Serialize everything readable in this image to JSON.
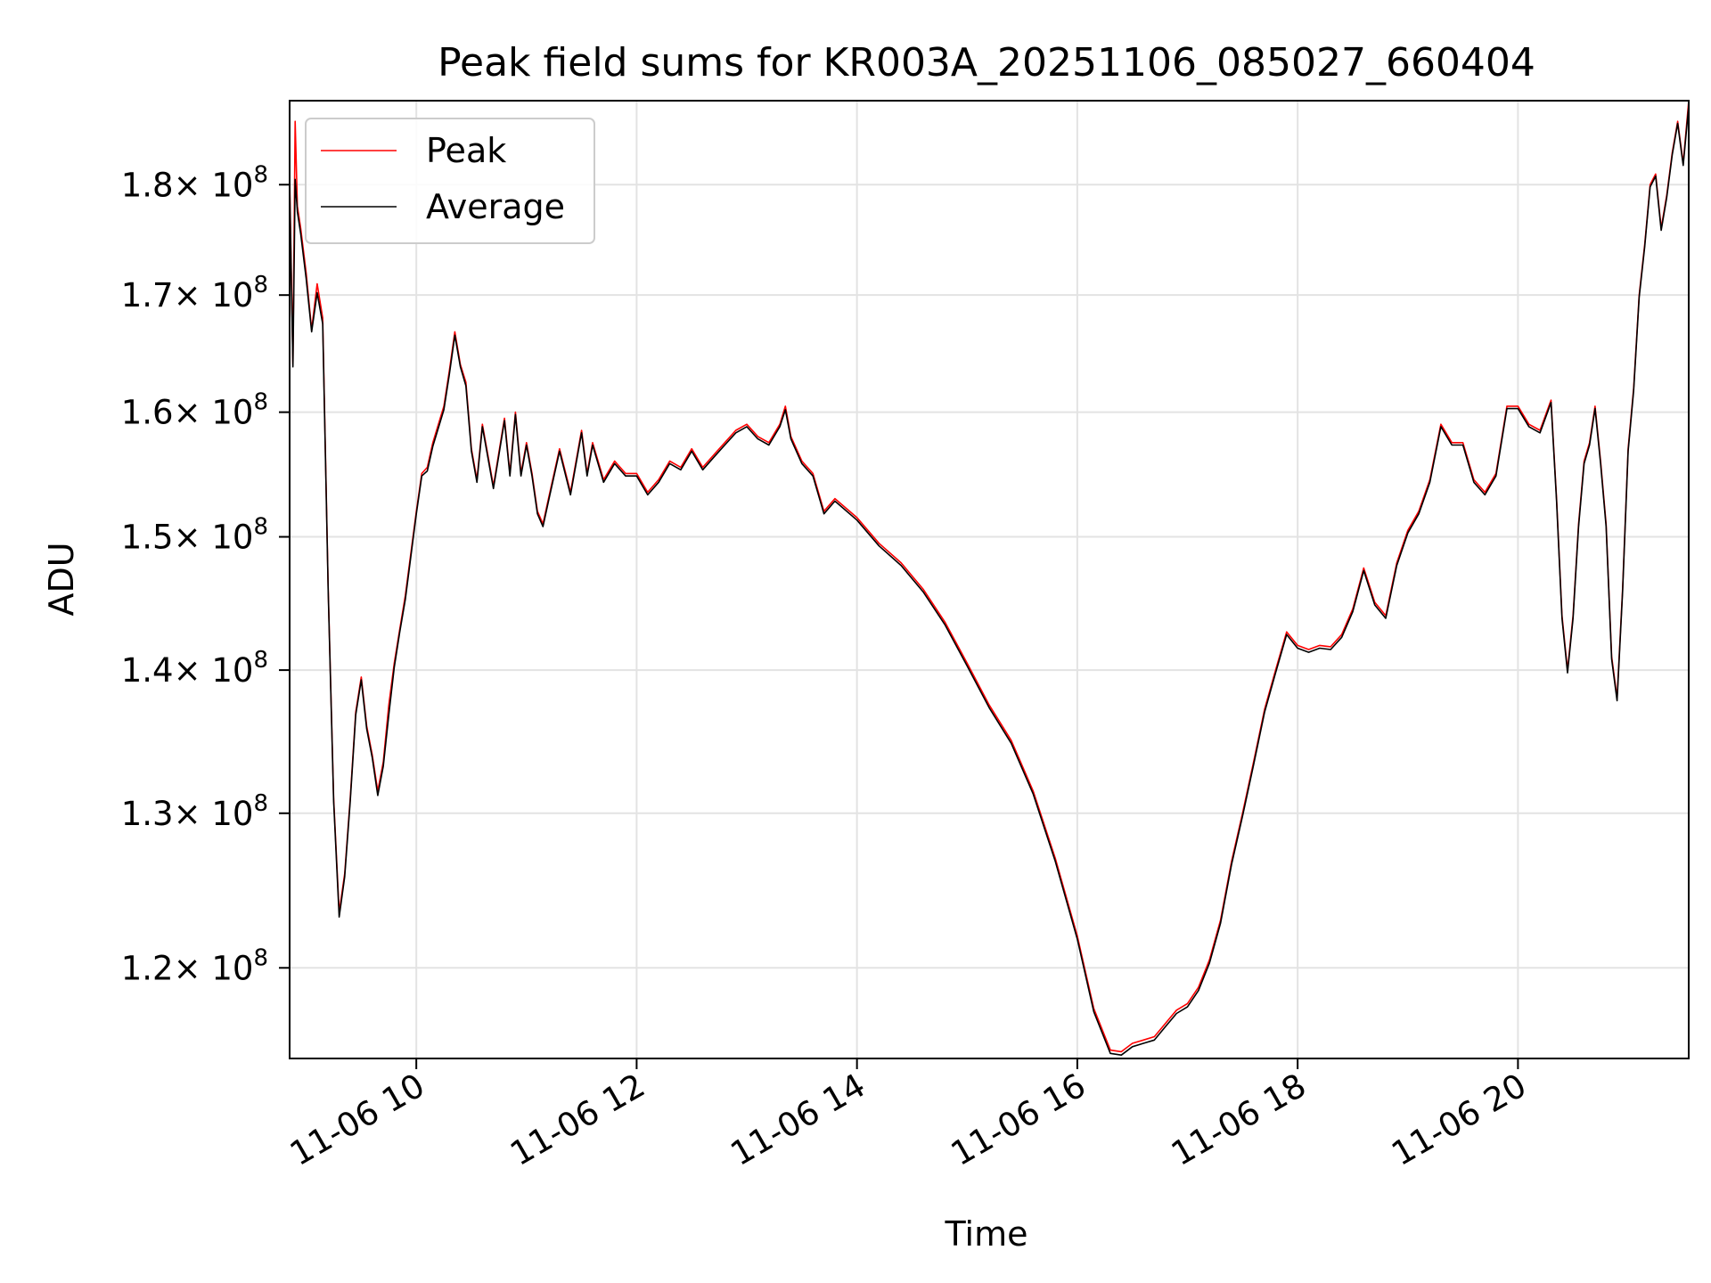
{
  "chart_data": {
    "type": "line",
    "title": "Peak field sums for KR003A_20251106_085027_660404",
    "xlabel": "Time",
    "ylabel": "ADU",
    "yscale": "log",
    "xlim": [
      8.85,
      21.55
    ],
    "ylim": [
      114500000,
      188000000
    ],
    "grid": true,
    "legend_position": "upper-left",
    "x_ticks": [
      {
        "value": 10,
        "label": "11-06 10"
      },
      {
        "value": 12,
        "label": "11-06 12"
      },
      {
        "value": 14,
        "label": "11-06 14"
      },
      {
        "value": 16,
        "label": "11-06 16"
      },
      {
        "value": 18,
        "label": "11-06 18"
      },
      {
        "value": 20,
        "label": "11-06 20"
      }
    ],
    "y_ticks": [
      {
        "value": 120000000,
        "mantissa": "1.2",
        "exponent": "8"
      },
      {
        "value": 130000000,
        "mantissa": "1.3",
        "exponent": "8"
      },
      {
        "value": 140000000,
        "mantissa": "1.4",
        "exponent": "8"
      },
      {
        "value": 150000000,
        "mantissa": "1.5",
        "exponent": "8"
      },
      {
        "value": 160000000,
        "mantissa": "1.6",
        "exponent": "8"
      },
      {
        "value": 170000000,
        "mantissa": "1.7",
        "exponent": "8"
      },
      {
        "value": 180000000,
        "mantissa": "1.8",
        "exponent": "8"
      }
    ],
    "tick_multiplier": "× 10",
    "series": [
      {
        "name": "Peak",
        "color": "#ff0000",
        "x": [
          8.85,
          8.88,
          8.9,
          8.92,
          8.95,
          9.0,
          9.05,
          9.1,
          9.15,
          9.2,
          9.25,
          9.3,
          9.35,
          9.4,
          9.45,
          9.5,
          9.55,
          9.6,
          9.65,
          9.7,
          9.75,
          9.8,
          9.85,
          9.9,
          10.0,
          10.05,
          10.1,
          10.15,
          10.25,
          10.3,
          10.35,
          10.4,
          10.45,
          10.5,
          10.55,
          10.6,
          10.7,
          10.8,
          10.85,
          10.9,
          10.95,
          11.0,
          11.05,
          11.1,
          11.15,
          11.2,
          11.3,
          11.4,
          11.5,
          11.55,
          11.6,
          11.7,
          11.8,
          11.9,
          12.0,
          12.1,
          12.2,
          12.3,
          12.4,
          12.5,
          12.6,
          12.7,
          12.8,
          12.9,
          13.0,
          13.1,
          13.2,
          13.3,
          13.35,
          13.4,
          13.5,
          13.6,
          13.7,
          13.8,
          14.0,
          14.2,
          14.4,
          14.6,
          14.8,
          15.0,
          15.2,
          15.4,
          15.6,
          15.8,
          16.0,
          16.15,
          16.3,
          16.4,
          16.5,
          16.6,
          16.7,
          16.8,
          16.9,
          17.0,
          17.1,
          17.2,
          17.3,
          17.4,
          17.5,
          17.6,
          17.7,
          17.8,
          17.9,
          18.0,
          18.1,
          18.2,
          18.3,
          18.4,
          18.5,
          18.6,
          18.7,
          18.8,
          18.9,
          19.0,
          19.1,
          19.2,
          19.3,
          19.4,
          19.5,
          19.6,
          19.7,
          19.8,
          19.9,
          20.0,
          20.1,
          20.2,
          20.3,
          20.35,
          20.4,
          20.45,
          20.5,
          20.55,
          20.6,
          20.65,
          20.7,
          20.75,
          20.8,
          20.85,
          20.9,
          20.95,
          21.0,
          21.05,
          21.1,
          21.15,
          21.2,
          21.25,
          21.3,
          21.35,
          21.4,
          21.45,
          21.5,
          21.55
        ],
        "y": [
          181000000,
          164000000,
          186000000,
          178000000,
          176000000,
          172000000,
          167000000,
          171000000,
          168000000,
          146000000,
          131000000,
          123500000,
          126000000,
          131000000,
          137000000,
          139500000,
          136000000,
          134000000,
          131500000,
          133500000,
          137500000,
          140500000,
          143000000,
          145500000,
          152000000,
          155000000,
          155500000,
          157500000,
          160500000,
          163500000,
          166800000,
          164000000,
          162500000,
          157000000,
          154500000,
          159000000,
          154000000,
          159500000,
          155000000,
          160000000,
          155000000,
          157500000,
          155000000,
          152000000,
          151000000,
          153000000,
          157000000,
          153500000,
          158500000,
          155000000,
          157500000,
          154500000,
          156000000,
          155000000,
          155000000,
          153500000,
          154500000,
          156000000,
          155500000,
          157000000,
          155500000,
          156500000,
          157500000,
          158500000,
          159000000,
          158000000,
          157500000,
          159000000,
          160500000,
          158000000,
          156000000,
          155000000,
          152000000,
          153000000,
          151500000,
          149500000,
          148000000,
          146000000,
          143500000,
          140500000,
          137500000,
          135000000,
          131500000,
          127000000,
          122000000,
          117500000,
          115000000,
          114900000,
          115400000,
          115600000,
          115800000,
          116600000,
          117400000,
          117800000,
          118800000,
          120500000,
          123000000,
          126800000,
          130000000,
          133500000,
          137200000,
          140000000,
          142800000,
          141800000,
          141500000,
          141800000,
          141700000,
          142600000,
          144500000,
          147600000,
          145000000,
          144000000,
          148000000,
          150500000,
          152000000,
          154500000,
          159000000,
          157500000,
          157500000,
          154500000,
          153500000,
          155000000,
          160500000,
          160500000,
          159000000,
          158500000,
          161000000,
          153000000,
          144000000,
          140000000,
          144000000,
          151000000,
          156000000,
          157500000,
          160500000,
          156000000,
          151000000,
          141000000,
          138000000,
          146000000,
          157000000,
          162000000,
          170000000,
          174500000,
          180000000,
          181000000,
          176000000,
          179000000,
          183000000,
          186000000,
          182000000,
          188000000
        ]
      },
      {
        "name": "Average",
        "color": "#000000",
        "x": [
          8.85,
          8.88,
          8.9,
          8.92,
          8.95,
          9.0,
          9.05,
          9.1,
          9.15,
          9.2,
          9.25,
          9.3,
          9.35,
          9.4,
          9.45,
          9.5,
          9.55,
          9.6,
          9.65,
          9.7,
          9.75,
          9.8,
          9.85,
          9.9,
          10.0,
          10.05,
          10.1,
          10.15,
          10.25,
          10.3,
          10.35,
          10.4,
          10.45,
          10.5,
          10.55,
          10.6,
          10.7,
          10.8,
          10.85,
          10.9,
          10.95,
          11.0,
          11.05,
          11.1,
          11.15,
          11.2,
          11.3,
          11.4,
          11.5,
          11.55,
          11.6,
          11.7,
          11.8,
          11.9,
          12.0,
          12.1,
          12.2,
          12.3,
          12.4,
          12.5,
          12.6,
          12.7,
          12.8,
          12.9,
          13.0,
          13.1,
          13.2,
          13.3,
          13.35,
          13.4,
          13.5,
          13.6,
          13.7,
          13.8,
          14.0,
          14.2,
          14.4,
          14.6,
          14.8,
          15.0,
          15.2,
          15.4,
          15.6,
          15.8,
          16.0,
          16.15,
          16.3,
          16.4,
          16.5,
          16.6,
          16.7,
          16.8,
          16.9,
          17.0,
          17.1,
          17.2,
          17.3,
          17.4,
          17.5,
          17.6,
          17.7,
          17.8,
          17.9,
          18.0,
          18.1,
          18.2,
          18.3,
          18.4,
          18.5,
          18.6,
          18.7,
          18.8,
          18.9,
          19.0,
          19.1,
          19.2,
          19.3,
          19.4,
          19.5,
          19.6,
          19.7,
          19.8,
          19.9,
          20.0,
          20.1,
          20.2,
          20.3,
          20.35,
          20.4,
          20.45,
          20.5,
          20.55,
          20.6,
          20.65,
          20.7,
          20.75,
          20.8,
          20.85,
          20.9,
          20.95,
          21.0,
          21.05,
          21.1,
          21.15,
          21.2,
          21.25,
          21.3,
          21.35,
          21.4,
          21.45,
          21.5,
          21.55
        ],
        "y": [
          180000000,
          163800000,
          180500000,
          177500000,
          175500000,
          171500000,
          166800000,
          170200000,
          167500000,
          145800000,
          130800000,
          123200000,
          125800000,
          130800000,
          136800000,
          139300000,
          135800000,
          133800000,
          131200000,
          133200000,
          136800000,
          140200000,
          142800000,
          145200000,
          151800000,
          154800000,
          155200000,
          157200000,
          160200000,
          163200000,
          166500000,
          163800000,
          162200000,
          156800000,
          154300000,
          158800000,
          153800000,
          159300000,
          154800000,
          159800000,
          154800000,
          157300000,
          154800000,
          151800000,
          150800000,
          152800000,
          156800000,
          153300000,
          158300000,
          154800000,
          157300000,
          154300000,
          155800000,
          154800000,
          154800000,
          153300000,
          154300000,
          155800000,
          155300000,
          156800000,
          155300000,
          156300000,
          157300000,
          158300000,
          158800000,
          157800000,
          157300000,
          158800000,
          160200000,
          157800000,
          155800000,
          154800000,
          151800000,
          152800000,
          151300000,
          149300000,
          147800000,
          145800000,
          143300000,
          140300000,
          137300000,
          134800000,
          131300000,
          126800000,
          121800000,
          117300000,
          114800000,
          114700000,
          115200000,
          115400000,
          115600000,
          116400000,
          117200000,
          117600000,
          118600000,
          120300000,
          122800000,
          126600000,
          129800000,
          133300000,
          137000000,
          139800000,
          142600000,
          141600000,
          141300000,
          141600000,
          141500000,
          142400000,
          144300000,
          147400000,
          144800000,
          143800000,
          147800000,
          150300000,
          151800000,
          154300000,
          158800000,
          157300000,
          157300000,
          154300000,
          153300000,
          154800000,
          160300000,
          160300000,
          158800000,
          158300000,
          160800000,
          152800000,
          143800000,
          139800000,
          143800000,
          150800000,
          155800000,
          157300000,
          160300000,
          155800000,
          150800000,
          140800000,
          137800000,
          145800000,
          156800000,
          161800000,
          169800000,
          174300000,
          179800000,
          180800000,
          175800000,
          178800000,
          182800000,
          185800000,
          181800000,
          187500000
        ]
      }
    ]
  }
}
